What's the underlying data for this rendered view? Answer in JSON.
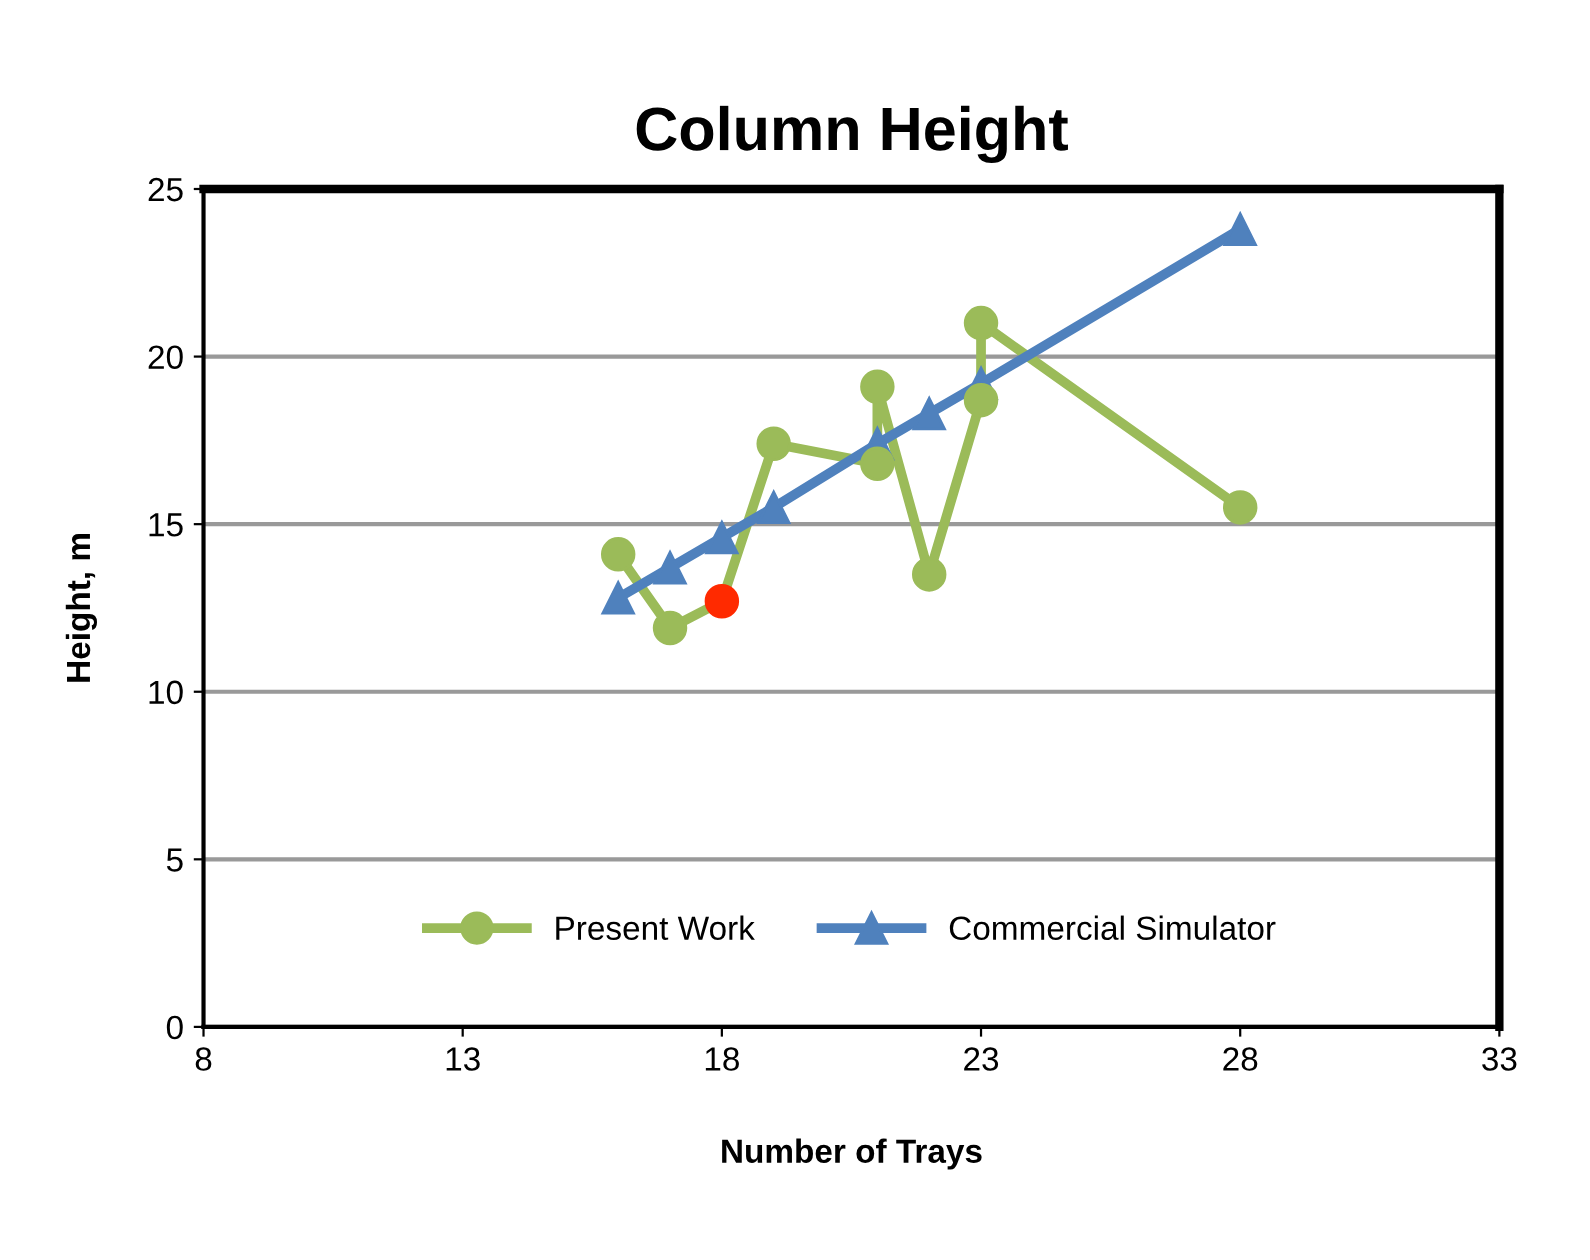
{
  "chart_data": {
    "type": "line",
    "title": "Column Height",
    "xlabel": "Number of Trays",
    "ylabel": "Height, m",
    "xlim": [
      8,
      33
    ],
    "xticks": [
      8,
      13,
      18,
      23,
      28,
      33
    ],
    "ylim": [
      0,
      25
    ],
    "yticks": [
      0,
      5,
      10,
      15,
      20,
      25
    ],
    "grid": "y",
    "legend": "bottom",
    "series": [
      {
        "name": "Present Work",
        "color": "#9bbb59",
        "marker": "circle",
        "x": [
          16,
          17,
          18,
          19,
          21,
          21,
          22,
          23,
          23,
          28
        ],
        "values": [
          14.1,
          11.9,
          12.7,
          17.4,
          16.8,
          19.1,
          13.5,
          18.7,
          21.0,
          15.5
        ],
        "colors": [
          "#9bbb59",
          "#9bbb59",
          "#ff2a00",
          "#9bbb59",
          "#9bbb59",
          "#9bbb59",
          "#9bbb59",
          "#9bbb59",
          "#9bbb59",
          "#9bbb59"
        ]
      },
      {
        "name": "Commercial Simulator",
        "color": "#4f81bd",
        "marker": "triangle",
        "x": [
          16,
          17,
          18,
          19,
          21,
          22,
          23,
          28
        ],
        "values": [
          12.8,
          13.7,
          14.6,
          15.5,
          17.4,
          18.3,
          19.2,
          23.8
        ]
      }
    ]
  }
}
